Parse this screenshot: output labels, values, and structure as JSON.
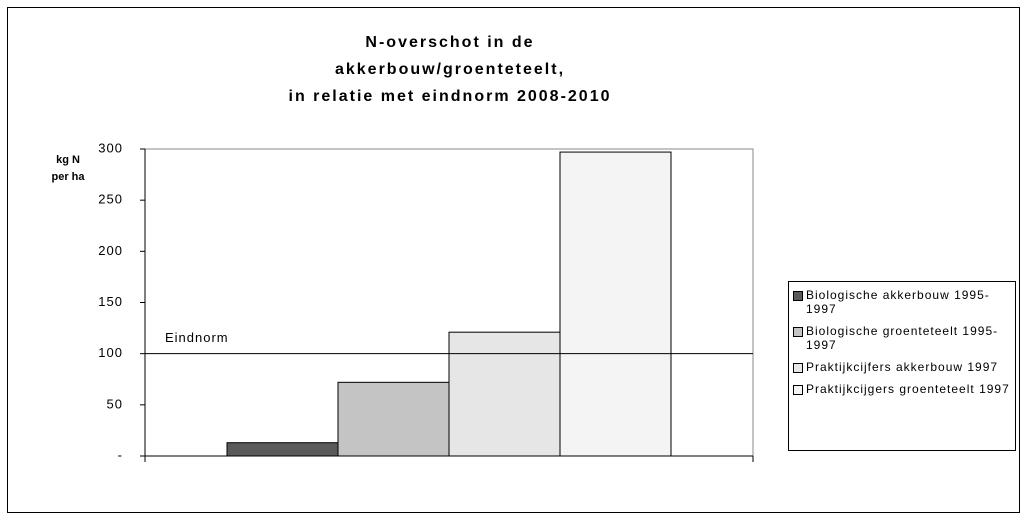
{
  "chart_data": {
    "type": "bar",
    "title": [
      "N-overschot in de",
      "akkerbouw/groenteteelt,",
      "in relatie met eindnorm 2008-2010"
    ],
    "y_label": [
      "kg N",
      "per ha"
    ],
    "series": [
      {
        "name": "Biologische akkerbouw 1995-1997",
        "color": "#5a5a5a",
        "values": [
          13
        ]
      },
      {
        "name": "Biologische groenteteelt 1995-1997",
        "color": "#c4c4c4",
        "values": [
          72
        ]
      },
      {
        "name": "Praktijkcijfers akkerbouw 1997",
        "color": "#e6e6e6",
        "values": [
          121
        ]
      },
      {
        "name": "Praktijkcijgers groenteteelt 1997",
        "color": "#f4f4f4",
        "values": [
          297
        ]
      }
    ],
    "reference_line": {
      "label": "Eindnorm",
      "value": 100
    },
    "ylim": [
      0,
      300
    ],
    "yticks": [
      {
        "value": 0,
        "label": "-"
      },
      50,
      100,
      150,
      200,
      250,
      300
    ],
    "legend": "right"
  }
}
